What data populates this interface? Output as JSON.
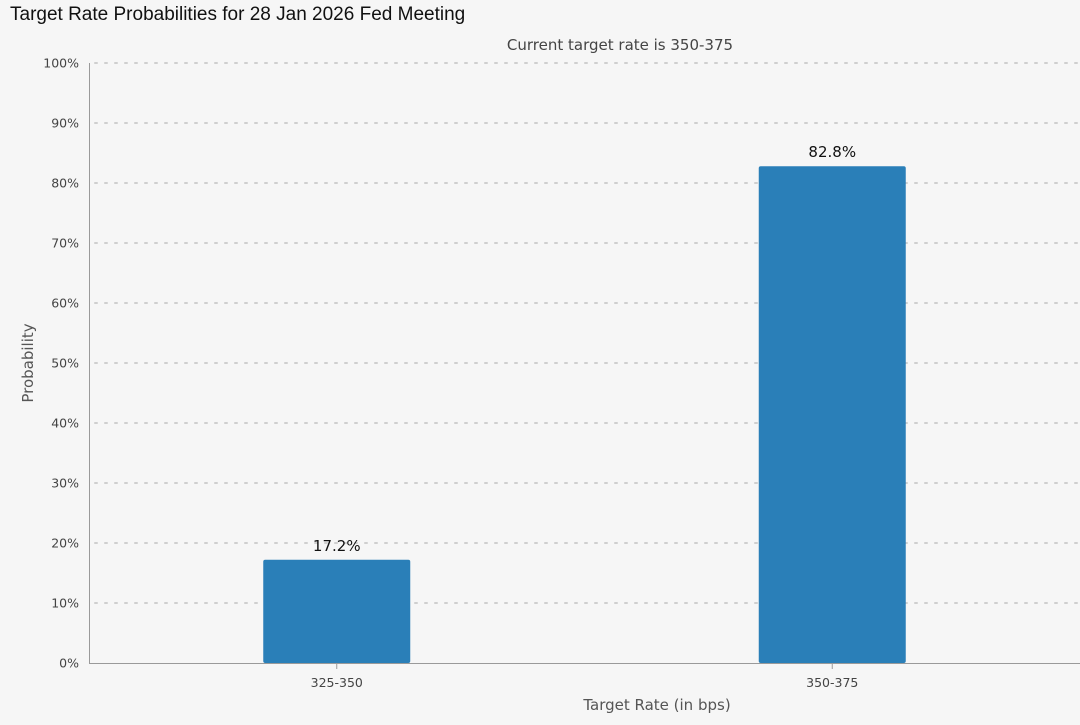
{
  "page_title": "Target Rate Probabilities for 28 Jan 2026 Fed Meeting",
  "chart_data": {
    "type": "bar",
    "title": "Target Rate Probabilities for 28 Jan 2026 Fed Meeting",
    "subtitle": "Current target rate is 350-375",
    "xlabel": "Target Rate (in bps)",
    "ylabel": "Probability",
    "categories": [
      "325-350",
      "350-375"
    ],
    "values": [
      17.2,
      82.8
    ],
    "data_labels": [
      "17.2%",
      "82.8%"
    ],
    "ylim": [
      0,
      100
    ],
    "yticks": [
      0,
      10,
      20,
      30,
      40,
      50,
      60,
      70,
      80,
      90,
      100
    ],
    "ytick_labels": [
      "0%",
      "10%",
      "20%",
      "30%",
      "40%",
      "50%",
      "60%",
      "70%",
      "80%",
      "90%",
      "100%"
    ],
    "grid": true,
    "legend": "none",
    "bar_color": "#2a7fb8"
  }
}
